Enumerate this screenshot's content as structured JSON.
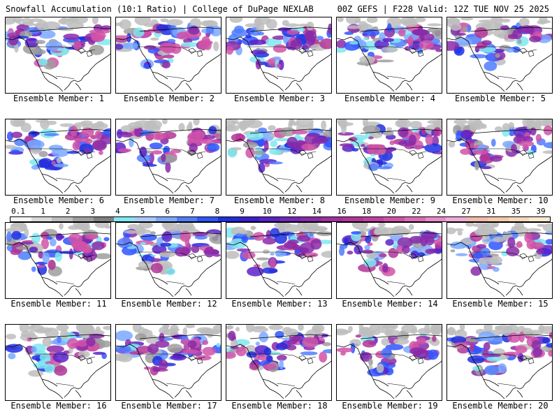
{
  "header": {
    "left": "Snowfall Accumulation (10:1 Ratio) | College of DuPage NEXLAB",
    "right": "00Z GEFS | F228 Valid: 12Z TUE NOV 25 2025"
  },
  "panels": [
    {
      "label": "Ensemble Member: 1"
    },
    {
      "label": "Ensemble Member: 2"
    },
    {
      "label": "Ensemble Member: 3"
    },
    {
      "label": "Ensemble Member: 4"
    },
    {
      "label": "Ensemble Member: 5"
    },
    {
      "label": "Ensemble Member: 6"
    },
    {
      "label": "Ensemble Member: 7"
    },
    {
      "label": "Ensemble Member: 8"
    },
    {
      "label": "Ensemble Member: 9"
    },
    {
      "label": "Ensemble Member: 10"
    },
    {
      "label": "Ensemble Member: 11"
    },
    {
      "label": "Ensemble Member: 12"
    },
    {
      "label": "Ensemble Member: 13"
    },
    {
      "label": "Ensemble Member: 14"
    },
    {
      "label": "Ensemble Member: 15"
    },
    {
      "label": "Ensemble Member: 16"
    },
    {
      "label": "Ensemble Member: 17"
    },
    {
      "label": "Ensemble Member: 18"
    },
    {
      "label": "Ensemble Member: 19"
    },
    {
      "label": "Ensemble Member: 20"
    }
  ],
  "colorbar": {
    "ticks": [
      "0.1",
      "1",
      "2",
      "3",
      "4",
      "5",
      "6",
      "7",
      "8",
      "9",
      "10",
      "12",
      "14",
      "16",
      "18",
      "20",
      "22",
      "24",
      "27",
      "31",
      "35",
      "39"
    ],
    "colors": [
      "#f5f5f5",
      "#d9d9d9",
      "#bdbdbd",
      "#9e9e9e",
      "#808080",
      "#7fe8f0",
      "#a9c8ff",
      "#7aa8ff",
      "#4f7cff",
      "#2f55ff",
      "#1f2fe0",
      "#3a1fd0",
      "#5a22c8",
      "#7326b8",
      "#8a2aa8",
      "#a02fa0",
      "#b23598",
      "#c03fa0",
      "#d052a8",
      "#dc6cb8",
      "#e88ac8",
      "#f0aad8",
      "#f2b8a8",
      "#f4c8a8",
      "#f8d8b8",
      "#fde8d0"
    ]
  }
}
